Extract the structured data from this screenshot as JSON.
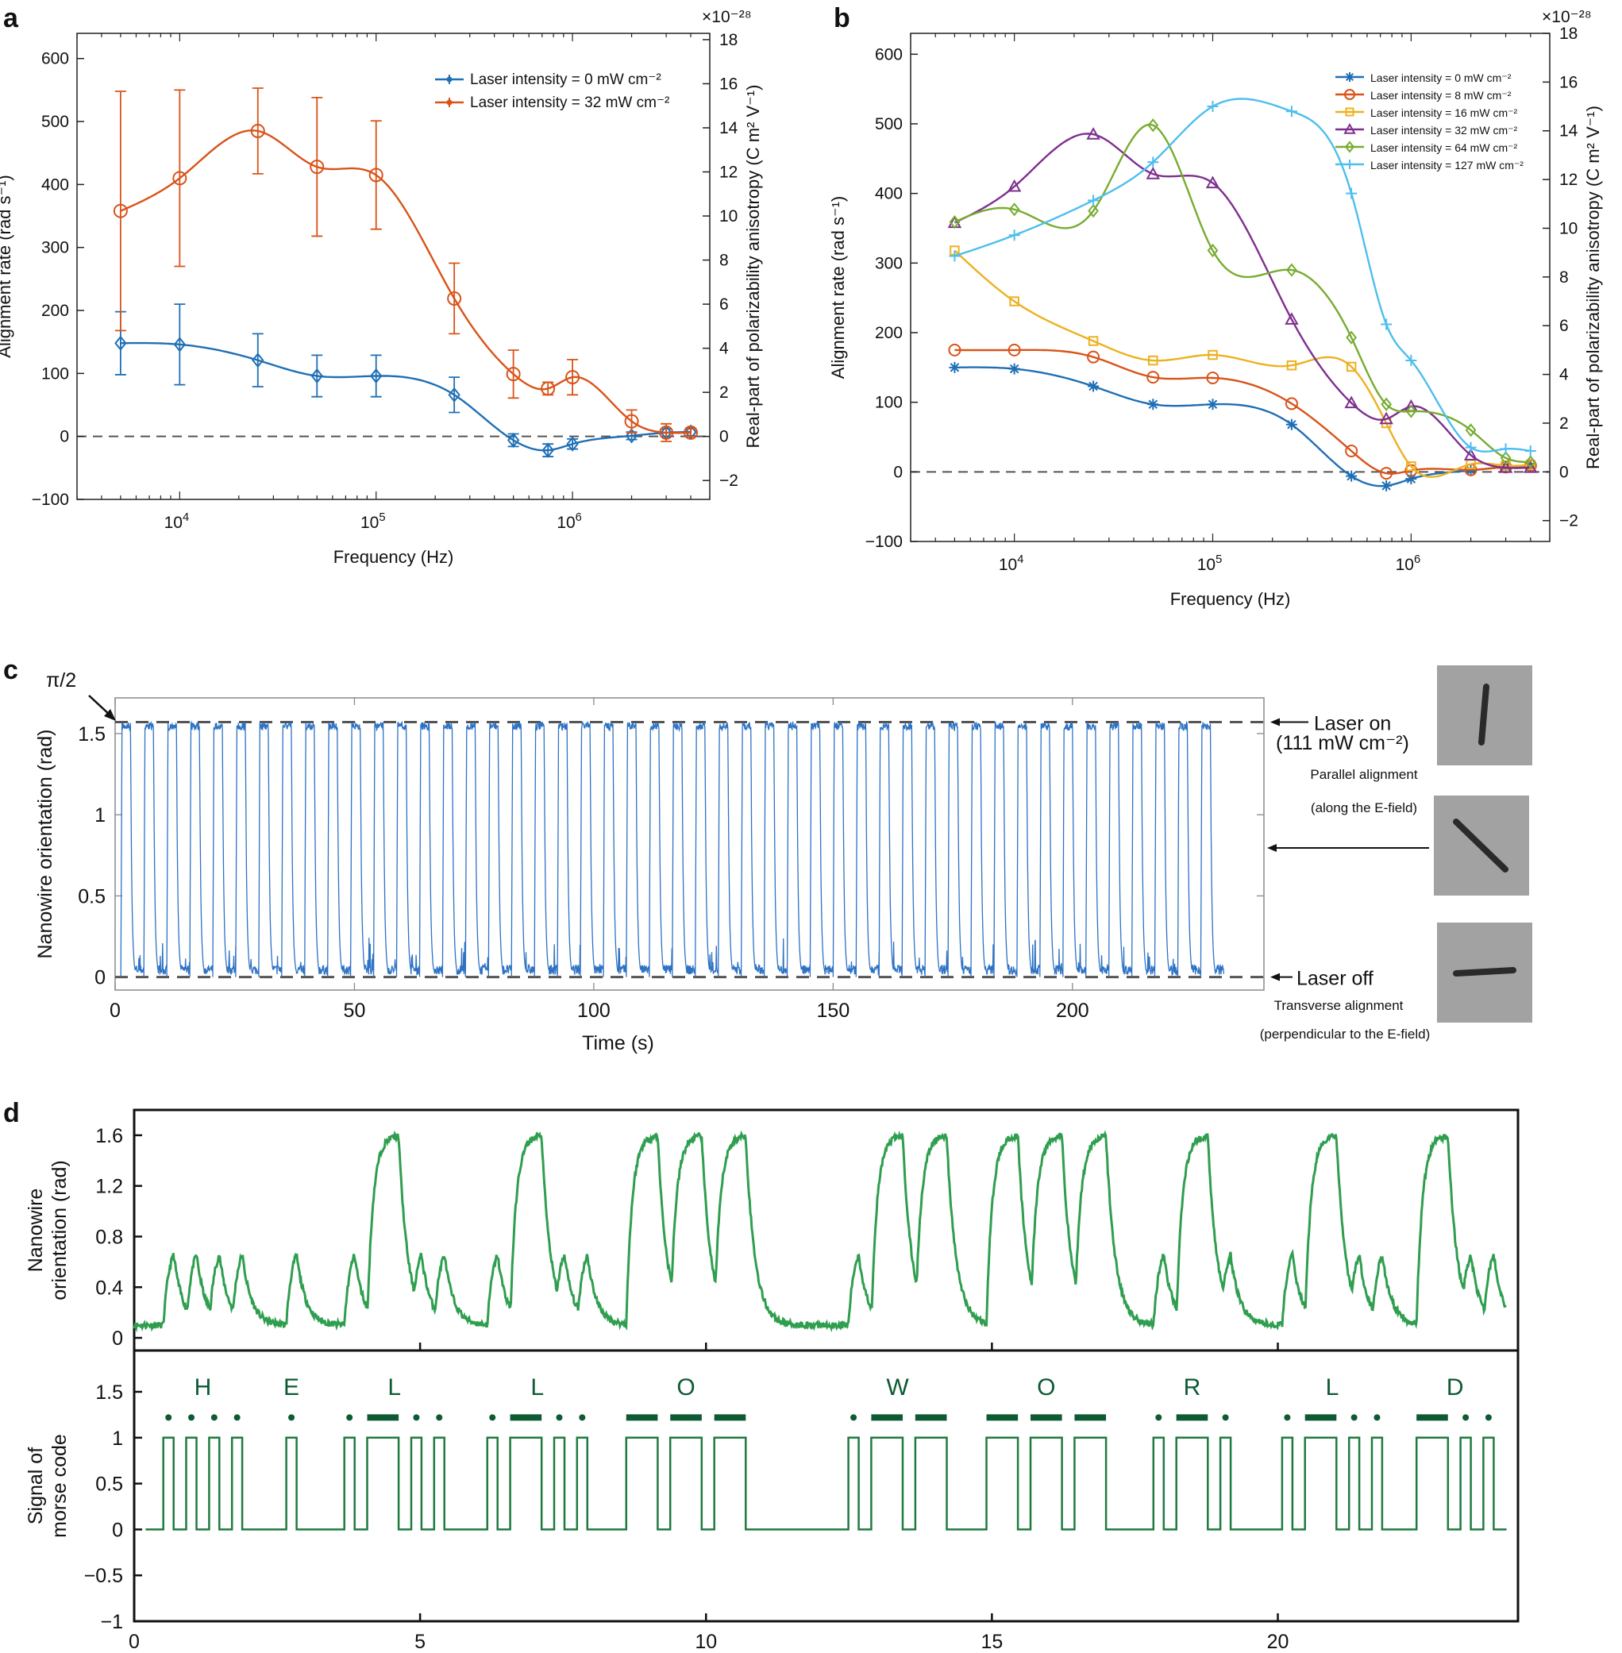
{
  "chart_data": [
    {
      "panel": "a",
      "type": "line",
      "xscale": "log",
      "xlabel": "Frequency (Hz)",
      "ylabel": "Alignment rate (rad s⁻¹)",
      "ylabel_right": "Real-part of polarizability anisotropy (C m² V⁻¹)",
      "right_exponent": "×10⁻²⁸",
      "xlim": [
        3000,
        5000000
      ],
      "ylim": [
        -100,
        640
      ],
      "ylim_right": [
        -2.857,
        18.286
      ],
      "xticks": [
        {
          "v": 10000,
          "b": "10",
          "e": "4"
        },
        {
          "v": 100000,
          "b": "10",
          "e": "5"
        },
        {
          "v": 1000000,
          "b": "10",
          "e": "6"
        }
      ],
      "yticks": [
        "−100",
        "0",
        "100",
        "200",
        "300",
        "400",
        "500",
        "600"
      ],
      "yticks_values": [
        -100,
        0,
        100,
        200,
        300,
        400,
        500,
        600
      ],
      "yticks_right": [
        "−2",
        "0",
        "2",
        "4",
        "6",
        "8",
        "10",
        "12",
        "14",
        "16",
        "18"
      ],
      "yticks_right_values": [
        -2,
        0,
        2,
        4,
        6,
        8,
        10,
        12,
        14,
        16,
        18
      ],
      "x": [
        5000,
        10000,
        25000,
        50000,
        100000,
        250000,
        500000,
        750000,
        1000000,
        2000000,
        3000000,
        4000000
      ],
      "series": [
        {
          "name": "Laser intensity = 0 mW cm⁻²",
          "color": "#1f6fb5",
          "marker": "diamond",
          "values": [
            148,
            146,
            121,
            96,
            96,
            66,
            -6,
            -22,
            -12,
            1,
            6,
            7
          ],
          "errors": [
            50,
            64,
            42,
            33,
            33,
            28,
            10,
            10,
            8,
            6,
            6,
            6
          ]
        },
        {
          "name": "Laser intensity = 32 mW cm⁻²",
          "color": "#d95319",
          "marker": "circle",
          "values": [
            358,
            410,
            485,
            428,
            415,
            219,
            99,
            76,
            94,
            24,
            6,
            6
          ],
          "errors": [
            190,
            140,
            68,
            110,
            86,
            56,
            38,
            10,
            28,
            18,
            14,
            6
          ]
        }
      ]
    },
    {
      "panel": "b",
      "type": "line",
      "xscale": "log",
      "xlabel": "Frequency (Hz)",
      "ylabel": "Alignment rate (rad s⁻¹)",
      "ylabel_right": "Real-part of polarizability anisotropy (C m² V⁻¹)",
      "right_exponent": "×10⁻²⁸",
      "xlim": [
        3000,
        5000000
      ],
      "ylim": [
        -100,
        630
      ],
      "ylim_right": [
        -2.857,
        18.0
      ],
      "xticks": [
        {
          "v": 10000,
          "b": "10",
          "e": "4"
        },
        {
          "v": 100000,
          "b": "10",
          "e": "5"
        },
        {
          "v": 1000000,
          "b": "10",
          "e": "6"
        }
      ],
      "yticks": [
        "−100",
        "0",
        "100",
        "200",
        "300",
        "400",
        "500",
        "600"
      ],
      "yticks_values": [
        -100,
        0,
        100,
        200,
        300,
        400,
        500,
        600
      ],
      "yticks_right": [
        "−2",
        "0",
        "2",
        "4",
        "6",
        "8",
        "10",
        "12",
        "14",
        "16",
        "18"
      ],
      "yticks_right_values": [
        -2,
        0,
        2,
        4,
        6,
        8,
        10,
        12,
        14,
        16,
        18
      ],
      "x": [
        5000,
        10000,
        25000,
        50000,
        100000,
        250000,
        500000,
        750000,
        1000000,
        2000000,
        3000000,
        4000000
      ],
      "series": [
        {
          "name": "Laser intensity = 0 mW cm⁻²",
          "color": "#1f6fb5",
          "marker": "star",
          "values": [
            150,
            148,
            123,
            97,
            97,
            68,
            -6,
            -20,
            -10,
            2,
            7,
            8
          ]
        },
        {
          "name": "Laser intensity = 8 mW cm⁻²",
          "color": "#d95319",
          "marker": "circle",
          "values": [
            175,
            175,
            165,
            136,
            135,
            98,
            30,
            -2,
            2,
            3,
            7,
            9
          ]
        },
        {
          "name": "Laser intensity = 16 mW cm⁻²",
          "color": "#edb120",
          "marker": "square",
          "values": [
            318,
            245,
            188,
            160,
            168,
            153,
            151,
            70,
            8,
            11,
            9,
            10
          ]
        },
        {
          "name": "Laser intensity = 32 mW cm⁻²",
          "color": "#7e2f8e",
          "marker": "triangle",
          "values": [
            358,
            410,
            485,
            428,
            415,
            219,
            99,
            76,
            94,
            24,
            6,
            6
          ]
        },
        {
          "name": "Laser intensity = 64 mW cm⁻²",
          "color": "#77ac30",
          "marker": "diamond",
          "values": [
            359,
            377,
            375,
            498,
            318,
            290,
            193,
            97,
            87,
            60,
            20,
            14
          ]
        },
        {
          "name": "Laser intensity = 127 mW cm⁻²",
          "color": "#4dbeee",
          "marker": "plus",
          "values": [
            310,
            340,
            390,
            445,
            525,
            518,
            400,
            212,
            160,
            35,
            33,
            30
          ]
        }
      ]
    },
    {
      "panel": "c",
      "type": "line",
      "xlabel": "Time (s)",
      "ylabel": "Nanowire orientation (rad)",
      "xlim": [
        0,
        240
      ],
      "ylim": [
        -0.08,
        1.72
      ],
      "xticks": [
        "0",
        "50",
        "100",
        "150",
        "200"
      ],
      "xticks_values": [
        0,
        50,
        100,
        150,
        200
      ],
      "yticks": [
        "0",
        "0.5",
        "1",
        "1.5"
      ],
      "yticks_values": [
        0,
        0.5,
        1,
        1.5
      ],
      "color": "#2d72c4",
      "period_s": 4.8,
      "cycles": 48,
      "high_value": 1.5708,
      "low_value": 0,
      "annotations": {
        "pi_label": "π/2",
        "laser_on": "Laser on",
        "laser_on_intensity": "(111 mW cm⁻²)",
        "parallel": "Parallel alignment",
        "parallel_sub": "(along the E-field)",
        "laser_off": "Laser off",
        "transverse": "Transverse alignment",
        "transverse_sub": "(perpendicular to the E-field)"
      }
    },
    {
      "panel": "d-top",
      "type": "line",
      "xlabel": "",
      "ylabel_line1": "Nanowire",
      "ylabel_line2": "orientation (rad)",
      "xlim": [
        0,
        24.2
      ],
      "ylim": [
        -0.1,
        1.8
      ],
      "yticks": [
        "0",
        "0.4",
        "0.8",
        "1.2",
        "1.6"
      ],
      "yticks_values": [
        0,
        0.4,
        0.8,
        1.2,
        1.6
      ],
      "color": "#2f9e4f"
    },
    {
      "panel": "d-bottom",
      "type": "line",
      "xlabel": "Time (s)",
      "ylabel_line1": "Signal of",
      "ylabel_line2": "morse code",
      "xlim": [
        0,
        24.2
      ],
      "ylim": [
        -1.0,
        1.95
      ],
      "xticks": [
        "0",
        "5",
        "10",
        "15",
        "20"
      ],
      "xticks_values": [
        0,
        5,
        10,
        15,
        20
      ],
      "yticks": [
        "−1",
        "−0.5",
        "0",
        "0.5",
        "1",
        "1.5"
      ],
      "yticks_values": [
        -1,
        -0.5,
        0,
        0.5,
        1,
        1.5
      ],
      "color": "#1f7a3f",
      "message": "HELLO WORLD",
      "letters": [
        {
          "label": "H",
          "x": 1.2,
          "code": "...."
        },
        {
          "label": "E",
          "x": 2.75,
          "code": "."
        },
        {
          "label": "L",
          "x": 4.55,
          "code": ".-.."
        },
        {
          "label": "L",
          "x": 7.05,
          "code": ".-.."
        },
        {
          "label": "O",
          "x": 9.65,
          "code": "---"
        },
        {
          "label": "W",
          "x": 13.35,
          "code": ".--"
        },
        {
          "label": "O",
          "x": 15.95,
          "code": "---"
        },
        {
          "label": "R",
          "x": 18.5,
          "code": ".-."
        },
        {
          "label": "L",
          "x": 20.95,
          "code": ".-.."
        },
        {
          "label": "D",
          "x": 23.1,
          "code": "-.."
        }
      ]
    }
  ],
  "panel_labels": {
    "a": "a",
    "b": "b",
    "c": "c",
    "d": "d"
  }
}
